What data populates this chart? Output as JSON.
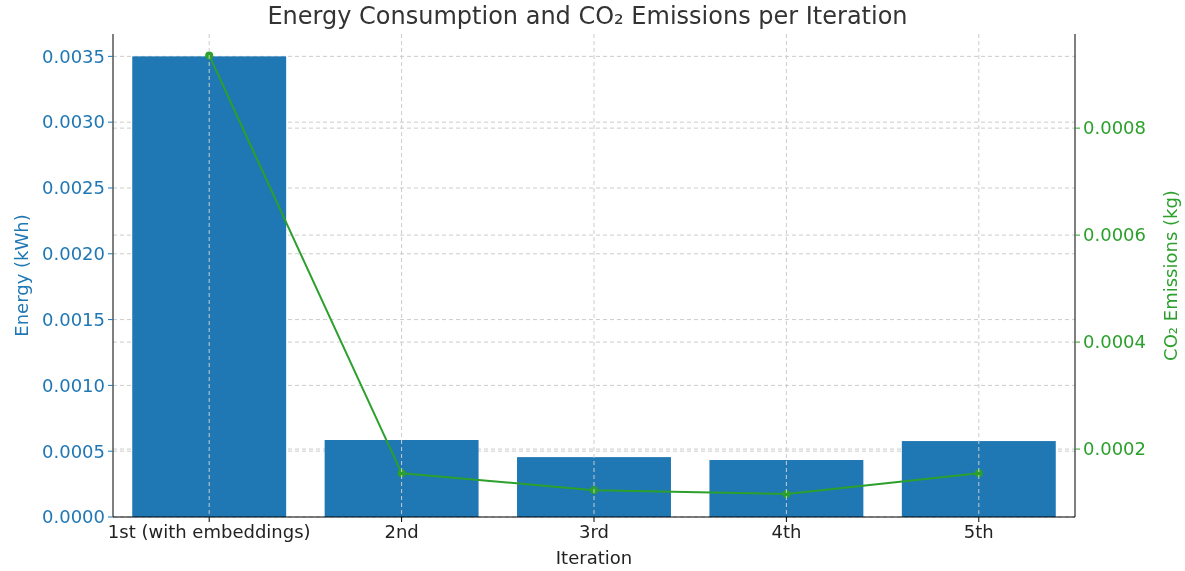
{
  "chart_data": {
    "type": "bar",
    "title": "Energy Consumption and CO₂ Emissions per Iteration",
    "xlabel": "Iteration",
    "ylabel": "Energy (kWh)",
    "y2label": "CO₂ Emissions (kg)",
    "categories": [
      "1st (with embeddings)",
      "2nd",
      "3rd",
      "4th",
      "5th"
    ],
    "series": [
      {
        "name": null,
        "color": "#1f77b4",
        "values": [
          0.0035,
          0.000585,
          0.000455,
          0.000433,
          0.000577
        ]
      },
      {
        "name": null,
        "type": "line",
        "axis": "y2",
        "color": "#2ca02c",
        "marker": "circle",
        "values": [
          0.000936,
          0.000155,
          0.000123,
          0.000116,
          0.000155
        ]
      }
    ],
    "ylim": [
      0,
      0.00367
    ],
    "yticks": [
      {
        "value": 0,
        "label": "0.0000"
      },
      {
        "value": 0.0005,
        "label": "0.0005"
      },
      {
        "value": 0.001,
        "label": "0.0010"
      },
      {
        "value": 0.0015,
        "label": "0.0015"
      },
      {
        "value": 0.002,
        "label": "0.0020"
      },
      {
        "value": 0.0025,
        "label": "0.0025"
      },
      {
        "value": 0.003,
        "label": "0.0030"
      },
      {
        "value": 0.0035,
        "label": "0.0035"
      }
    ],
    "y2lim": [
      7.3e-05,
      0.000976
    ],
    "y2ticks": [
      0.0002,
      0.0004,
      0.0006,
      0.0008
    ],
    "grid": true
  }
}
